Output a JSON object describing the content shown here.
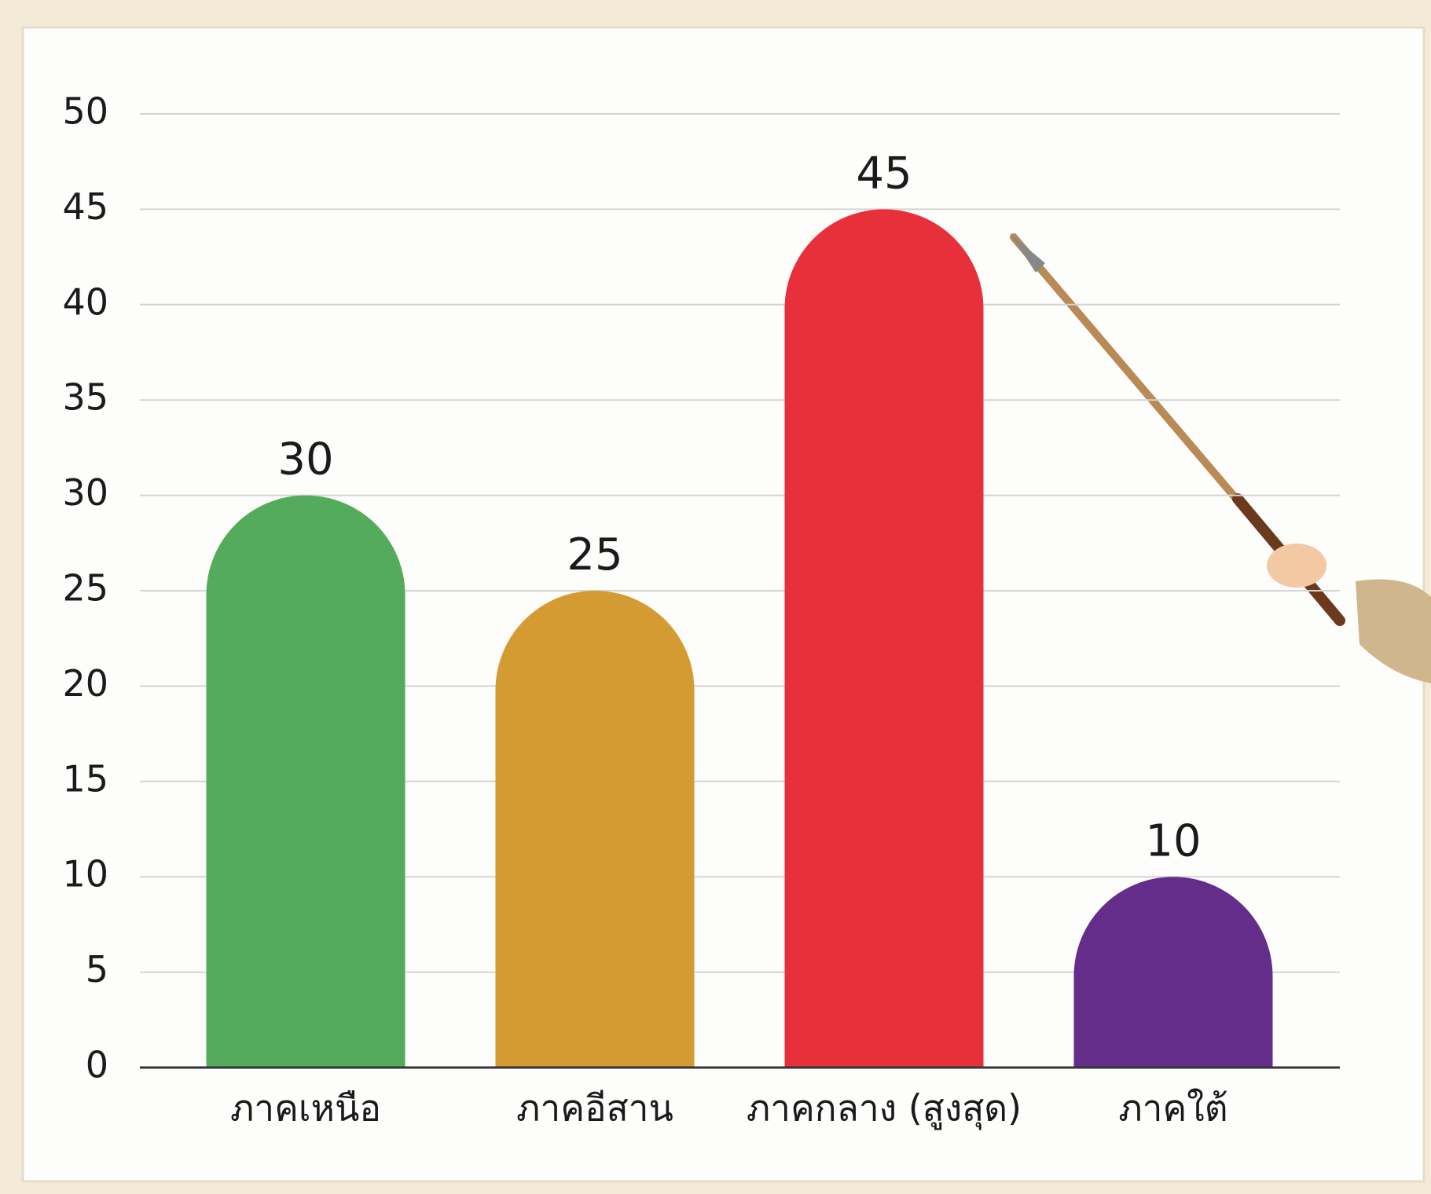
{
  "chart_data": {
    "type": "bar",
    "categories": [
      "ภาคเหนือ",
      "ภาคอีสาน",
      "ภาคกลาง (สูงสุด)",
      "ภาคใต้"
    ],
    "values": [
      30,
      25,
      45,
      10
    ],
    "colors": [
      "#55ab5c",
      "#d49b32",
      "#e8303a",
      "#652d8a"
    ],
    "ylim": [
      0,
      50
    ],
    "yticks": [
      0,
      5,
      10,
      15,
      20,
      25,
      30,
      35,
      40,
      45,
      50
    ],
    "grid": true
  }
}
